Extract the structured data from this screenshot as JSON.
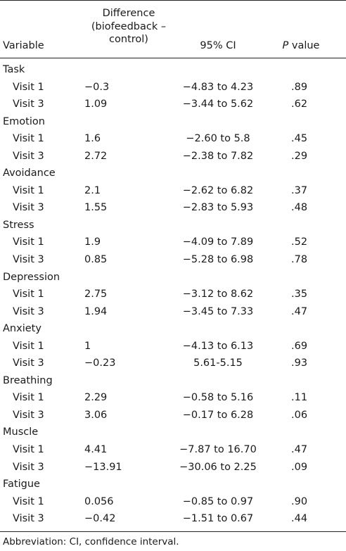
{
  "table": {
    "headers": {
      "variable": "Variable",
      "difference_lines": [
        "Difference",
        "(biofeedback –",
        "control)"
      ],
      "ci": "95% CI",
      "p_italic": "P",
      "p_rest": " value"
    },
    "groups": [
      {
        "name": "Task",
        "rows": [
          {
            "visit": "Visit 1",
            "diff": "−0.3",
            "ci": "−4.83 to 4.23",
            "p": ".89"
          },
          {
            "visit": "Visit 3",
            "diff": "1.09",
            "ci": "−3.44 to 5.62",
            "p": ".62"
          }
        ]
      },
      {
        "name": "Emotion",
        "rows": [
          {
            "visit": "Visit 1",
            "diff": "1.6",
            "ci": "−2.60 to 5.8",
            "p": ".45"
          },
          {
            "visit": "Visit 3",
            "diff": "2.72",
            "ci": "−2.38 to 7.82",
            "p": ".29"
          }
        ]
      },
      {
        "name": "Avoidance",
        "rows": [
          {
            "visit": "Visit 1",
            "diff": "2.1",
            "ci": "−2.62 to 6.82",
            "p": ".37"
          },
          {
            "visit": "Visit 3",
            "diff": "1.55",
            "ci": "−2.83 to 5.93",
            "p": ".48"
          }
        ]
      },
      {
        "name": "Stress",
        "rows": [
          {
            "visit": "Visit 1",
            "diff": "1.9",
            "ci": "−4.09 to 7.89",
            "p": ".52"
          },
          {
            "visit": "Visit 3",
            "diff": "0.85",
            "ci": "−5.28 to 6.98",
            "p": ".78"
          }
        ]
      },
      {
        "name": "Depression",
        "rows": [
          {
            "visit": "Visit 1",
            "diff": "2.75",
            "ci": "−3.12 to 8.62",
            "p": ".35"
          },
          {
            "visit": "Visit 3",
            "diff": "1.94",
            "ci": "−3.45 to 7.33",
            "p": ".47"
          }
        ]
      },
      {
        "name": "Anxiety",
        "rows": [
          {
            "visit": "Visit 1",
            "diff": "1",
            "ci": "−4.13 to 6.13",
            "p": ".69"
          },
          {
            "visit": "Visit 3",
            "diff": "−0.23",
            "ci": "5.61-5.15",
            "p": ".93"
          }
        ]
      },
      {
        "name": "Breathing",
        "rows": [
          {
            "visit": "Visit 1",
            "diff": "2.29",
            "ci": "−0.58 to 5.16",
            "p": ".11"
          },
          {
            "visit": "Visit 3",
            "diff": "3.06",
            "ci": "−0.17 to 6.28",
            "p": ".06"
          }
        ]
      },
      {
        "name": "Muscle",
        "rows": [
          {
            "visit": "Visit 1",
            "diff": "4.41",
            "ci": "−7.87 to 16.70",
            "p": ".47"
          },
          {
            "visit": "Visit 3",
            "diff": "−13.91",
            "ci": "−30.06 to 2.25",
            "p": ".09"
          }
        ]
      },
      {
        "name": "Fatigue",
        "rows": [
          {
            "visit": "Visit 1",
            "diff": "0.056",
            "ci": "−0.85 to 0.97",
            "p": ".90"
          },
          {
            "visit": "Visit 3",
            "diff": "−0.42",
            "ci": "−1.51 to 0.67",
            "p": ".44"
          }
        ]
      }
    ],
    "footnote": "Abbreviation: CI, confidence interval."
  }
}
